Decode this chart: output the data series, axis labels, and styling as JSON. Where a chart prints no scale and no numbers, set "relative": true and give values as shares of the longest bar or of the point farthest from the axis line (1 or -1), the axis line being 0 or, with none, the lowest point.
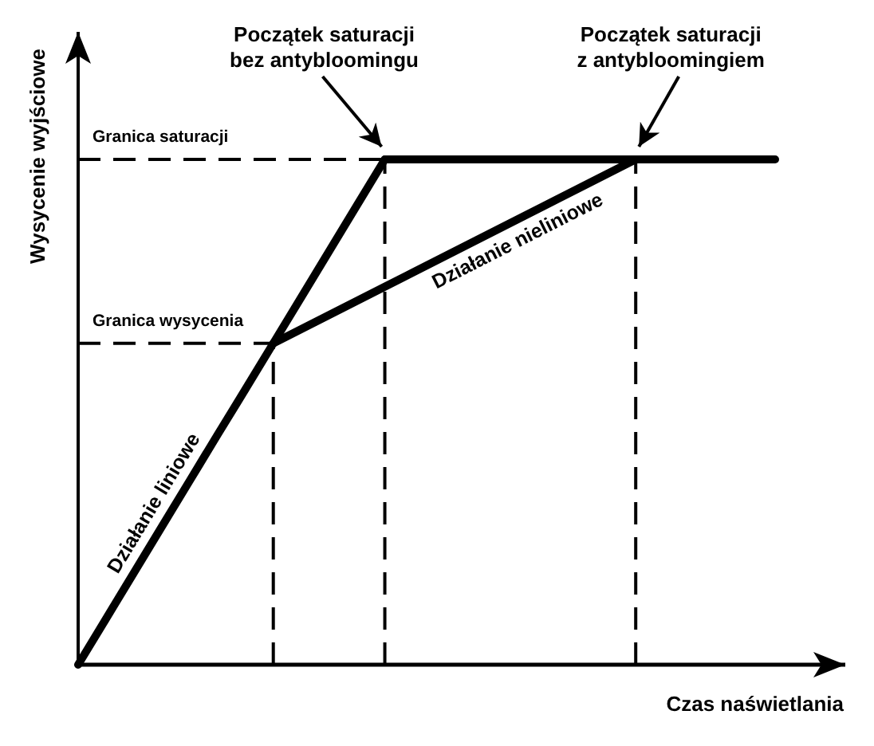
{
  "chart_data": {
    "type": "line",
    "relative": true,
    "xlabel": "Czas naświetlania",
    "ylabel": "Wysycenie wyjściowe",
    "categories": [
      null,
      null,
      null,
      null,
      null,
      null,
      null,
      null,
      null,
      null,
      null,
      null,
      null,
      null,
      null,
      null,
      null,
      null,
      null,
      null,
      null,
      null,
      null,
      null,
      null,
      null
    ],
    "series": [
      {
        "name": "Działanie liniowe",
        "color": "#000000",
        "values": [
          0,
          0.091,
          0.182,
          0.273,
          0.364,
          0.455,
          0.545,
          0.636,
          0.727,
          0.818,
          0.909,
          1,
          null,
          null,
          null,
          null,
          null,
          null,
          null,
          null,
          null,
          null,
          null,
          null,
          null,
          null
        ]
      },
      {
        "name": "Działanie nieliniowe",
        "color": "#000000",
        "values": [
          null,
          null,
          null,
          null,
          null,
          null,
          null,
          0.636,
          0.664,
          0.692,
          0.72,
          0.748,
          0.776,
          0.804,
          0.832,
          0.86,
          0.888,
          0.916,
          0.944,
          0.972,
          1,
          null,
          null,
          null,
          null,
          null
        ]
      },
      {
        "color": "#000000",
        "values": [
          null,
          null,
          null,
          null,
          null,
          null,
          null,
          null,
          null,
          null,
          null,
          1,
          1,
          1,
          1,
          1,
          1,
          1,
          1,
          1,
          1,
          1,
          1,
          1,
          1,
          1
        ]
      }
    ],
    "ref_lines": [
      {
        "axis": "y",
        "value": 1,
        "label": "Granica saturacji",
        "color": "#000000",
        "line_style": "dashed"
      },
      {
        "axis": "y",
        "value": 0.636,
        "label": "Granica wysycenia",
        "color": "#000000",
        "line_style": "dashed"
      }
    ],
    "annotations": [
      "Początek saturacji\nbez antybloomingu",
      "Początek saturacji\nz antybloomingiem"
    ]
  }
}
